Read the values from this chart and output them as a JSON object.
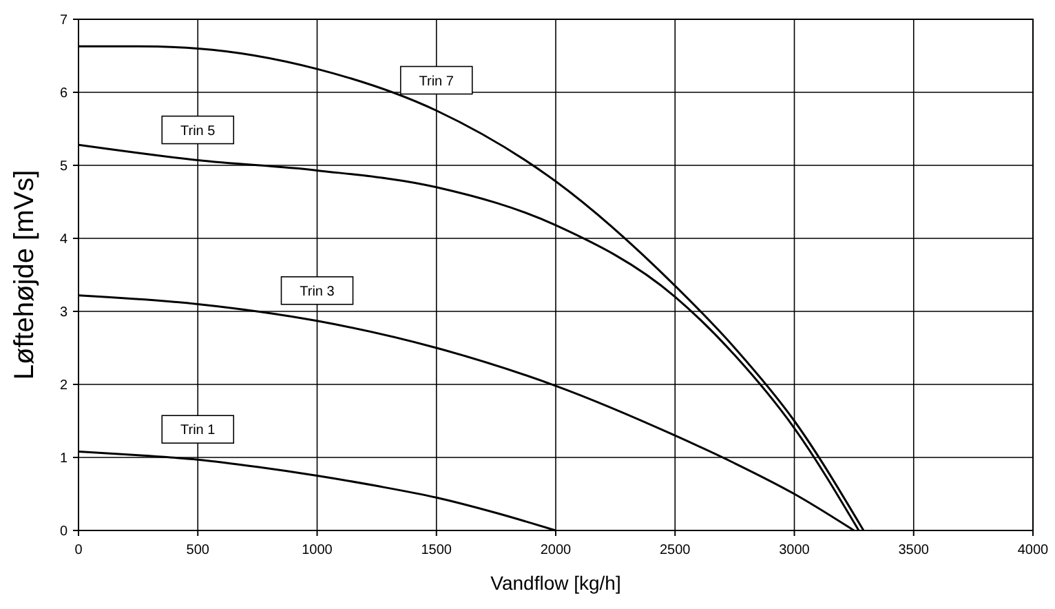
{
  "chart_data": {
    "type": "line",
    "xlabel": "Vandflow [kg/h]",
    "ylabel": "Løftehøjde [mVs]",
    "xlim": [
      0,
      4000
    ],
    "ylim": [
      0,
      7
    ],
    "xticks": [
      0,
      500,
      1000,
      1500,
      2000,
      2500,
      3000,
      3500,
      4000
    ],
    "yticks": [
      0,
      1,
      2,
      3,
      4,
      5,
      6,
      7
    ],
    "grid": true,
    "marker": "none",
    "line_style": "solid",
    "series": [
      {
        "name": "Trin 1",
        "color": "#000000",
        "x": [
          0,
          250,
          500,
          750,
          1000,
          1250,
          1500,
          1750,
          2000
        ],
        "values": [
          1.08,
          1.03,
          0.97,
          0.87,
          0.75,
          0.61,
          0.45,
          0.24,
          0
        ]
      },
      {
        "name": "Trin 3",
        "color": "#000000",
        "x": [
          0,
          500,
          1000,
          1500,
          2000,
          2500,
          2750,
          3000,
          3250
        ],
        "values": [
          3.22,
          3.1,
          2.87,
          2.5,
          1.98,
          1.3,
          0.92,
          0.5,
          0
        ]
      },
      {
        "name": "Trin 5",
        "color": "#000000",
        "x": [
          0,
          500,
          1000,
          1500,
          2000,
          2500,
          2750,
          3000,
          3270
        ],
        "values": [
          5.28,
          5.07,
          4.93,
          4.7,
          4.18,
          3.2,
          2.4,
          1.4,
          0
        ]
      },
      {
        "name": "Trin 7",
        "color": "#000000",
        "x": [
          0,
          250,
          500,
          1000,
          1500,
          2000,
          2500,
          2750,
          3000,
          3290
        ],
        "values": [
          6.63,
          6.63,
          6.6,
          6.32,
          5.75,
          4.78,
          3.35,
          2.5,
          1.5,
          0
        ]
      }
    ]
  }
}
